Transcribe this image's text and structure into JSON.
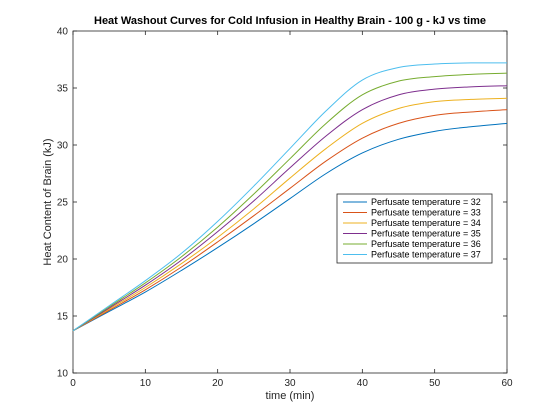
{
  "chart_data": {
    "type": "line",
    "title": "Heat Washout Curves for Cold Infusion in Healthy Brain - 100 g - kJ vs time",
    "xlabel": "time (min)",
    "ylabel": "Heat Content of Brain (kJ)",
    "xlim": [
      0,
      60
    ],
    "ylim": [
      10,
      40
    ],
    "xticks": [
      0,
      10,
      20,
      30,
      40,
      50,
      60
    ],
    "yticks": [
      10,
      15,
      20,
      25,
      30,
      35,
      40
    ],
    "grid": false,
    "legend_position": "right-middle",
    "x": [
      0,
      5,
      10,
      15,
      20,
      25,
      30,
      35,
      40,
      45,
      50,
      55,
      60
    ],
    "series": [
      {
        "name": "Perfusate temperature = 32",
        "color": "#0072BD",
        "values": [
          13.7,
          15.4,
          17.1,
          19.0,
          21.0,
          23.1,
          25.3,
          27.5,
          29.3,
          30.5,
          31.2,
          31.6,
          31.9
        ]
      },
      {
        "name": "Perfusate temperature = 33",
        "color": "#D95319",
        "values": [
          13.7,
          15.5,
          17.3,
          19.3,
          21.5,
          23.8,
          26.2,
          28.6,
          30.6,
          31.9,
          32.6,
          32.9,
          33.1
        ]
      },
      {
        "name": "Perfusate temperature = 34",
        "color": "#EDB120",
        "values": [
          13.7,
          15.6,
          17.5,
          19.6,
          21.9,
          24.4,
          27.1,
          29.7,
          31.9,
          33.2,
          33.8,
          34.0,
          34.1
        ]
      },
      {
        "name": "Perfusate temperature = 35",
        "color": "#7E2F8E",
        "values": [
          13.7,
          15.7,
          17.7,
          19.9,
          22.4,
          25.1,
          28.0,
          30.8,
          33.1,
          34.4,
          34.9,
          35.1,
          35.2
        ]
      },
      {
        "name": "Perfusate temperature = 36",
        "color": "#77AC30",
        "values": [
          13.7,
          15.8,
          17.9,
          20.2,
          22.8,
          25.7,
          28.8,
          31.9,
          34.4,
          35.6,
          36.0,
          36.2,
          36.3
        ]
      },
      {
        "name": "Perfusate temperature = 37",
        "color": "#4DBEEE",
        "values": [
          13.7,
          15.9,
          18.1,
          20.5,
          23.3,
          26.4,
          29.7,
          33.0,
          35.7,
          36.8,
          37.1,
          37.2,
          37.2
        ]
      }
    ]
  }
}
